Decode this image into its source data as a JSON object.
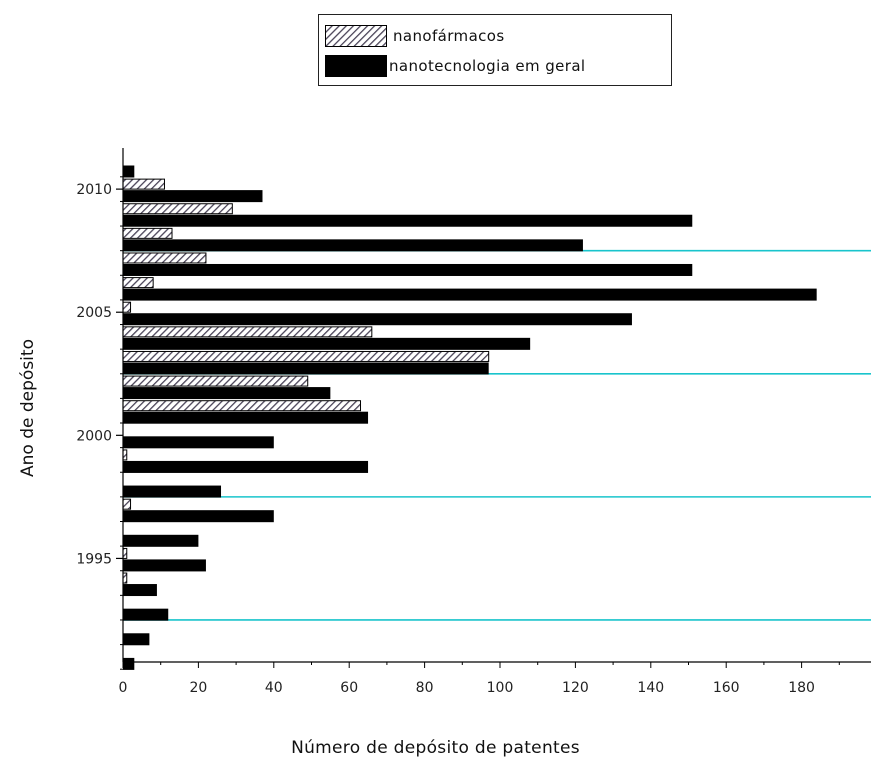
{
  "chart_data": {
    "type": "bar",
    "orientation": "horizontal",
    "xlabel": "Número de depósito de patentes",
    "ylabel": "Ano de depósito",
    "xlim": [
      0,
      198
    ],
    "xticks": [
      0,
      20,
      40,
      60,
      80,
      100,
      120,
      140,
      160,
      180
    ],
    "yticks": [
      1995,
      2000,
      2005,
      2010
    ],
    "categories": [
      1991,
      1992,
      1993,
      1994,
      1995,
      1996,
      1997,
      1998,
      1999,
      2000,
      2001,
      2002,
      2003,
      2004,
      2005,
      2006,
      2007,
      2008,
      2009,
      2010,
      2011
    ],
    "series": [
      {
        "name": "nanofármacos",
        "pattern": "hatched",
        "values": [
          0,
          0,
          0,
          1,
          1,
          0,
          2,
          0,
          1,
          0,
          63,
          49,
          97,
          66,
          2,
          8,
          22,
          13,
          29,
          11,
          0
        ]
      },
      {
        "name": "nanotecnologia em geral",
        "pattern": "solid",
        "values": [
          3,
          7,
          12,
          9,
          22,
          20,
          40,
          26,
          65,
          40,
          65,
          55,
          97,
          108,
          135,
          184,
          151,
          122,
          151,
          37,
          3
        ]
      }
    ],
    "reference_lines": [
      1993,
      1998,
      2003,
      2008
    ],
    "reference_line_color": "#19c4cc",
    "legend_position": "top-center"
  }
}
